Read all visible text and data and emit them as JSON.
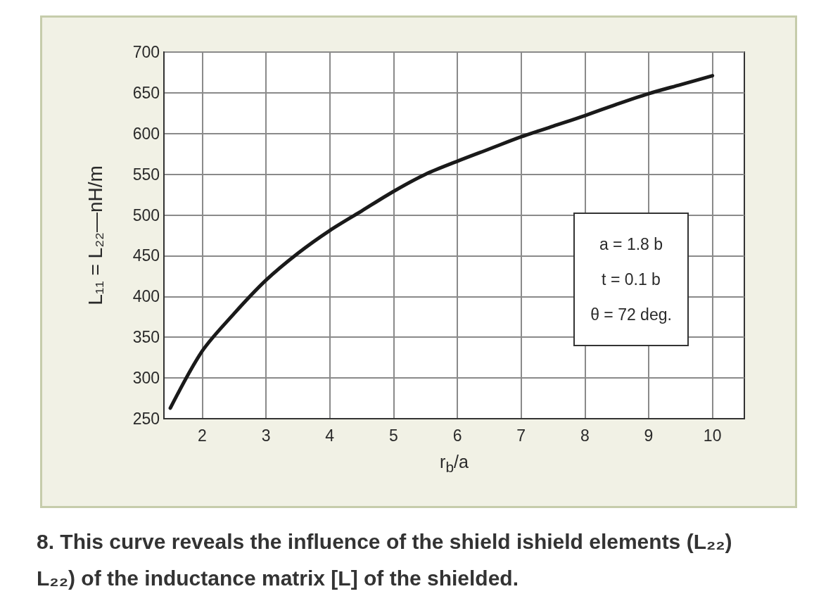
{
  "chart_data": {
    "type": "line",
    "xlabel": "r$_{b}$/a",
    "ylabel": "L₁₁ = L₂₂—nH/m",
    "x": [
      1.5,
      2,
      2.5,
      3,
      3.5,
      4,
      4.5,
      5,
      5.5,
      6,
      6.5,
      7,
      7.5,
      8,
      8.5,
      9,
      9.5,
      10
    ],
    "values": [
      263,
      333,
      379,
      420,
      453,
      481,
      505,
      529,
      550,
      566,
      581,
      596,
      609,
      622,
      636,
      649,
      660,
      671
    ],
    "color": "#1a1a1a",
    "xlim": [
      1.4,
      10.5
    ],
    "xticks": [
      2,
      3,
      4,
      5,
      6,
      7,
      8,
      9,
      10
    ],
    "ylim": [
      250,
      700
    ],
    "yticks": [
      250,
      300,
      350,
      400,
      450,
      500,
      550,
      600,
      650,
      700
    ],
    "grid": true,
    "annotations": [
      "a = 1.8 b\nt = 0.1 b\nθ = 72 deg.",
      "8. This curve reveals the influence of the shield ishield elements (L₂₂) L₂₂) of the inductance matrix [L] of the shielded."
    ]
  }
}
